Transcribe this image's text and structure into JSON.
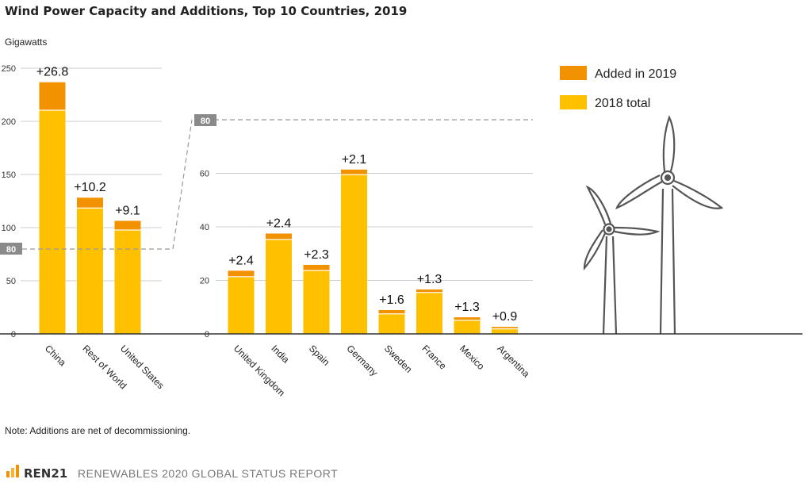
{
  "chart_data": {
    "type": "bar",
    "title": "Wind Power Capacity and Additions, Top 10 Countries, 2019",
    "ylabel": "Gigawatts",
    "legend_placement": "top-right",
    "grid": true,
    "panels": [
      {
        "categories": [
          "China",
          "Rest of World",
          "United States"
        ],
        "ylim": [
          0,
          250
        ],
        "yticks": [
          0,
          50,
          100,
          150,
          200,
          250
        ],
        "series": [
          {
            "name": "2018 total",
            "values": [
              210,
              118,
              97.3
            ]
          },
          {
            "name": "Added in 2019",
            "values": [
              26.8,
              10.2,
              9.1
            ]
          }
        ],
        "data_labels": [
          "+26.8",
          "+10.2",
          "+9.1"
        ]
      },
      {
        "categories": [
          "United Kingdom",
          "India",
          "Spain",
          "Germany",
          "Sweden",
          "France",
          "Mexico",
          "Argentina"
        ],
        "ylim": [
          0,
          80
        ],
        "yticks": [
          0,
          20,
          40,
          60
        ],
        "series": [
          {
            "name": "2018 total",
            "values": [
              21.2,
              35.1,
              23.5,
              59.3,
              7.3,
              15.3,
              4.9,
              1.7
            ]
          },
          {
            "name": "Added in 2019",
            "values": [
              2.4,
              2.4,
              2.3,
              2.1,
              1.6,
              1.3,
              1.3,
              0.9
            ]
          }
        ],
        "data_labels": [
          "+2.4",
          "+2.4",
          "+2.3",
          "+2.1",
          "+1.6",
          "+1.3",
          "+1.3",
          "+0.9"
        ]
      }
    ],
    "scale_link": "80",
    "legend": [
      {
        "label": "Added in 2019",
        "color": "#F39200"
      },
      {
        "label": "2018 total",
        "color": "#FFC000"
      }
    ]
  },
  "colors": {
    "added": "#F39200",
    "base": "#FFC000",
    "grid": "#cccccc",
    "badge": "#8a8a8a",
    "turbine": "#555555"
  },
  "icons": [
    "wind-turbine-icon",
    "ren21-logo-icon"
  ],
  "note": "Note: Additions are net of decommissioning.",
  "footer": {
    "brand": "REN21",
    "report": "RENEWABLES 2020 GLOBAL STATUS REPORT"
  }
}
